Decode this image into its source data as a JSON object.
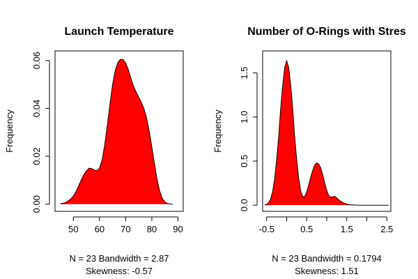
{
  "chart_data": [
    {
      "type": "area",
      "title": "Launch Temperature",
      "xlabel": "",
      "ylabel": "Frequency",
      "xlim": [
        43,
        92
      ],
      "ylim": [
        -0.003,
        0.064
      ],
      "x_ticks": [
        50,
        60,
        70,
        80,
        90
      ],
      "x_tick_labels": [
        "50",
        "60",
        "70",
        "80",
        "90"
      ],
      "y_ticks": [
        0.0,
        0.02,
        0.04,
        0.06
      ],
      "y_tick_labels": [
        "0.00",
        "0.02",
        "0.04",
        "0.06"
      ],
      "fill_color": "#ff0000",
      "line_color": "#000000",
      "grid": false,
      "legend": "none",
      "stat_lines": [
        "N = 23   Bandwidth = 2.87",
        "Skewness: -0.57"
      ],
      "series": [
        {
          "x": [
            45,
            47,
            49,
            50,
            51,
            52,
            53,
            54,
            55,
            56,
            57,
            58,
            59,
            60,
            61,
            62,
            63,
            64,
            65,
            66,
            67,
            68,
            69,
            70,
            71,
            72,
            73,
            74,
            75,
            76,
            77,
            78,
            79,
            80,
            81,
            82,
            83,
            84,
            85,
            86,
            87,
            88
          ],
          "values": [
            0.0002,
            0.0006,
            0.0021,
            0.0034,
            0.0052,
            0.0076,
            0.0101,
            0.0123,
            0.0139,
            0.015,
            0.0149,
            0.0142,
            0.014,
            0.015,
            0.0185,
            0.0248,
            0.033,
            0.042,
            0.05,
            0.0558,
            0.0592,
            0.0605,
            0.0604,
            0.059,
            0.0562,
            0.0526,
            0.0493,
            0.0468,
            0.0446,
            0.0425,
            0.0398,
            0.036,
            0.0305,
            0.024,
            0.017,
            0.0105,
            0.0055,
            0.0024,
            0.0009,
            0.0003,
            0.0001,
            0.0
          ]
        }
      ]
    },
    {
      "type": "area",
      "title": "Number of O-Rings with Stres",
      "xlabel": "",
      "ylabel": "Frequency",
      "xlim": [
        -0.6,
        2.6
      ],
      "ylim": [
        -0.07,
        1.75
      ],
      "x_ticks": [
        -0.5,
        0.0,
        0.5,
        1.0,
        1.5,
        2.0,
        2.5
      ],
      "x_tick_labels": [
        "-0.5",
        "0.5",
        "1.5",
        "2.5"
      ],
      "x_tick_labeled": [
        true,
        false,
        true,
        false,
        true,
        false,
        true
      ],
      "y_ticks": [
        0.0,
        0.5,
        1.0,
        1.5
      ],
      "y_tick_labels": [
        "0.0",
        "0.5",
        "1.0",
        "1.5"
      ],
      "fill_color": "#ff0000",
      "line_color": "#000000",
      "grid": false,
      "legend": "none",
      "stat_lines": [
        "N = 23   Bandwidth = 0.1794",
        "Skewness: 1.51"
      ],
      "series": [
        {
          "x": [
            -0.55,
            -0.5,
            -0.45,
            -0.4,
            -0.35,
            -0.3,
            -0.25,
            -0.2,
            -0.15,
            -0.1,
            -0.05,
            0.0,
            0.05,
            0.1,
            0.15,
            0.2,
            0.25,
            0.3,
            0.35,
            0.4,
            0.45,
            0.5,
            0.55,
            0.6,
            0.65,
            0.7,
            0.75,
            0.8,
            0.85,
            0.9,
            0.95,
            1.0,
            1.05,
            1.1,
            1.15,
            1.2,
            1.25,
            1.3,
            1.35,
            1.4,
            1.45,
            1.5,
            1.55,
            1.6,
            1.65,
            1.7,
            1.75,
            1.8,
            1.85,
            1.9,
            1.95,
            2.0,
            2.05,
            2.1,
            2.15,
            2.2,
            2.25,
            2.3,
            2.35,
            2.4,
            2.45,
            2.5,
            2.55
          ],
          "values": [
            0.003,
            0.01,
            0.028,
            0.07,
            0.156,
            0.304,
            0.518,
            0.775,
            1.102,
            1.36,
            1.562,
            1.64,
            1.562,
            1.36,
            1.102,
            0.775,
            0.518,
            0.304,
            0.16,
            0.095,
            0.098,
            0.152,
            0.228,
            0.318,
            0.396,
            0.456,
            0.48,
            0.468,
            0.42,
            0.344,
            0.252,
            0.168,
            0.108,
            0.09,
            0.095,
            0.1,
            0.082,
            0.06,
            0.043,
            0.03,
            0.022,
            0.012,
            0.008,
            0.005,
            0.003,
            0.002,
            0.001,
            0.0,
            0.0,
            0.0,
            0.0,
            0.0,
            0.0,
            0.0,
            0.0,
            0.0,
            0.0,
            0.0,
            0.0,
            0.0,
            0.0,
            0.0,
            0.0
          ]
        }
      ]
    }
  ]
}
